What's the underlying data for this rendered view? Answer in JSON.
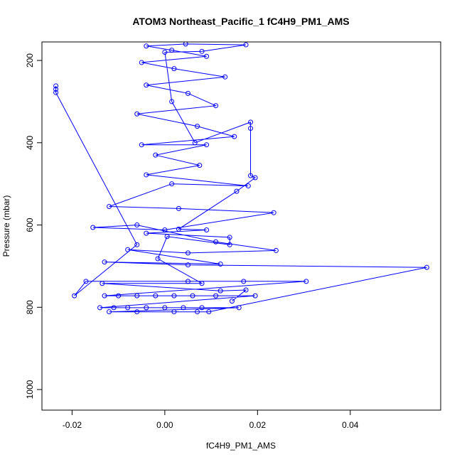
{
  "chart_data": {
    "type": "scatter",
    "title": "ATOM3 Northeast_Pacific_1 fC4H9_PM1_AMS",
    "xlabel": "fC4H9_PM1_AMS",
    "ylabel": "Pressure (mbar)",
    "xlim": [
      -0.0265,
      0.0595
    ],
    "ylim": [
      1050,
      155
    ],
    "y_inverted": true,
    "xticks": [
      -0.02,
      0.0,
      0.02,
      0.04
    ],
    "xtick_labels": [
      "-0.02",
      "0.00",
      "0.02",
      "0.04"
    ],
    "yticks": [
      200,
      400,
      600,
      800,
      1000
    ],
    "ytick_labels": [
      "200",
      "400",
      "600",
      "800",
      "1000"
    ],
    "grid": false,
    "series": [
      {
        "color": "#0000ff",
        "marker": "open-circle",
        "connected": true,
        "points": [
          [
            -0.0235,
            262
          ],
          [
            -0.0235,
            270
          ],
          [
            -0.0235,
            278
          ],
          [
            -0.006,
            648
          ],
          [
            -0.0195,
            772
          ],
          [
            -0.017,
            737
          ],
          [
            0.005,
            737
          ],
          [
            0.017,
            737
          ],
          [
            0.0305,
            737
          ],
          [
            -0.013,
            772
          ],
          [
            -0.01,
            772
          ],
          [
            -0.006,
            772
          ],
          [
            -0.002,
            772
          ],
          [
            0.002,
            772
          ],
          [
            0.006,
            772
          ],
          [
            0.011,
            772
          ],
          [
            0.0195,
            772
          ],
          [
            -0.014,
            801
          ],
          [
            -0.011,
            801
          ],
          [
            -0.008,
            801
          ],
          [
            -0.004,
            801
          ],
          [
            0.0,
            801
          ],
          [
            0.004,
            801
          ],
          [
            0.008,
            801
          ],
          [
            0.016,
            801
          ],
          [
            -0.012,
            811
          ],
          [
            -0.006,
            811
          ],
          [
            0.002,
            811
          ],
          [
            0.007,
            811
          ],
          [
            0.0095,
            811
          ],
          [
            0.0565,
            703
          ],
          [
            0.005,
            697
          ],
          [
            -0.013,
            690
          ],
          [
            0.012,
            695
          ],
          [
            -0.008,
            660
          ],
          [
            0.005,
            668
          ],
          [
            0.024,
            662
          ],
          [
            0.011,
            641
          ],
          [
            -0.006,
            600
          ],
          [
            -0.0155,
            606
          ],
          [
            0.0,
            612
          ],
          [
            0.0235,
            570
          ],
          [
            0.003,
            560
          ],
          [
            -0.012,
            555
          ],
          [
            0.0015,
            500
          ],
          [
            0.018,
            505
          ],
          [
            -0.004,
            478
          ],
          [
            0.0075,
            455
          ],
          [
            -0.002,
            430
          ],
          [
            0.009,
            405
          ],
          [
            -0.005,
            405
          ],
          [
            0.015,
            385
          ],
          [
            0.007,
            360
          ],
          [
            -0.006,
            330
          ],
          [
            0.011,
            310
          ],
          [
            0.005,
            280
          ],
          [
            -0.004,
            260
          ],
          [
            0.013,
            240
          ],
          [
            0.002,
            220
          ],
          [
            -0.005,
            205
          ],
          [
            0.009,
            190
          ],
          [
            0.0015,
            175
          ],
          [
            -0.004,
            165
          ],
          [
            0.0045,
            160
          ],
          [
            0.0175,
            162
          ],
          [
            0.008,
            178
          ],
          [
            0.0,
            180
          ],
          [
            0.0015,
            300
          ],
          [
            0.0065,
            400
          ],
          [
            0.0185,
            350
          ],
          [
            0.0185,
            365
          ],
          [
            0.0185,
            480
          ],
          [
            0.0195,
            485
          ],
          [
            0.0155,
            518
          ],
          [
            0.003,
            610
          ],
          [
            0.009,
            612
          ],
          [
            -0.004,
            620
          ],
          [
            0.014,
            630
          ],
          [
            0.014,
            648
          ],
          [
            0.0005,
            628
          ],
          [
            -0.0015,
            682
          ],
          [
            0.008,
            742
          ],
          [
            -0.0135,
            742
          ],
          [
            0.012,
            760
          ],
          [
            0.0175,
            758
          ],
          [
            0.0145,
            785
          ]
        ]
      }
    ]
  }
}
